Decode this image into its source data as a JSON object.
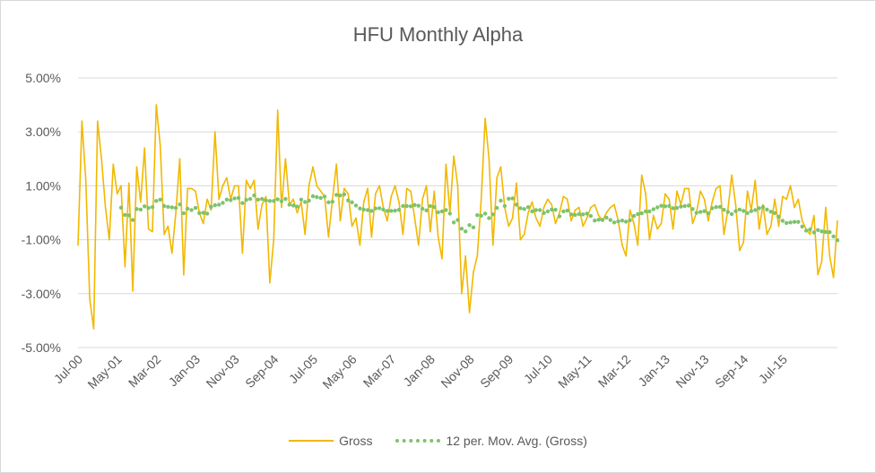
{
  "chart_data": {
    "type": "line",
    "title": "HFU Monthly Alpha",
    "x_start": "2000-07",
    "x_end": "2016-03",
    "x_tick_labels": [
      "Jul-00",
      "May-01",
      "Mar-02",
      "Jan-03",
      "Nov-03",
      "Sep-04",
      "Jul-05",
      "May-06",
      "Mar-07",
      "Jan-08",
      "Nov-08",
      "Sep-09",
      "Jul-10",
      "May-11",
      "Mar-12",
      "Jan-13",
      "Nov-13",
      "Sep-14",
      "Jul-15"
    ],
    "y_tick_labels": [
      "5.00%",
      "3.00%",
      "1.00%",
      "-1.00%",
      "-3.00%",
      "-5.00%"
    ],
    "ylim": [
      -5,
      5
    ],
    "ylabel": "",
    "xlabel": "",
    "grid": true,
    "legend_position": "bottom",
    "series": [
      {
        "name": "Gross",
        "style": "line",
        "color": "#f2b800",
        "values": [
          -1.2,
          3.4,
          1.2,
          -3.2,
          -4.3,
          3.4,
          2.0,
          0.2,
          -1.0,
          1.8,
          0.7,
          1.0,
          -2.0,
          1.1,
          -2.9,
          1.7,
          0.4,
          2.4,
          -0.6,
          -0.7,
          4.0,
          2.5,
          -0.8,
          -0.5,
          -1.5,
          0.0,
          2.0,
          -2.3,
          0.9,
          0.9,
          0.8,
          0.0,
          -0.4,
          0.5,
          0.1,
          3.0,
          0.5,
          1.0,
          1.3,
          0.5,
          1.0,
          1.0,
          -1.5,
          1.2,
          0.9,
          1.2,
          -0.6,
          0.3,
          0.6,
          -2.6,
          -1.0,
          3.8,
          0.2,
          2.0,
          0.3,
          0.5,
          0.0,
          0.4,
          -0.8,
          1.0,
          1.7,
          1.0,
          0.8,
          0.6,
          -0.9,
          0.5,
          1.8,
          -0.3,
          0.9,
          0.7,
          -0.5,
          -0.2,
          -1.2,
          0.4,
          0.9,
          -0.9,
          0.7,
          1.0,
          0.2,
          -0.3,
          0.6,
          1.0,
          0.4,
          -0.8,
          0.9,
          0.8,
          -0.2,
          -1.2,
          0.5,
          1.0,
          -0.7,
          0.8,
          -0.9,
          -1.7,
          1.8,
          0.0,
          2.1,
          1.0,
          -3.0,
          -1.6,
          -3.7,
          -2.2,
          -1.6,
          0.5,
          3.5,
          2.0,
          -1.2,
          1.3,
          1.7,
          0.2,
          -0.5,
          -0.2,
          1.1,
          -1.0,
          -0.8,
          0.0,
          0.4,
          -0.2,
          -0.5,
          0.2,
          0.5,
          0.3,
          -0.4,
          0.0,
          0.6,
          0.5,
          -0.3,
          0.1,
          0.2,
          -0.5,
          -0.2,
          0.2,
          0.3,
          -0.1,
          -0.3,
          0.0,
          0.2,
          0.3,
          -0.3,
          -1.2,
          -1.6,
          0.1,
          -0.4,
          -1.2,
          1.4,
          0.7,
          -1.0,
          -0.1,
          -0.6,
          -0.4,
          0.7,
          0.5,
          -0.6,
          0.8,
          0.3,
          0.9,
          0.9,
          -0.4,
          0.0,
          0.8,
          0.5,
          -0.3,
          0.4,
          0.9,
          1.0,
          -0.8,
          0.1,
          1.4,
          0.3,
          -1.4,
          -1.1,
          0.8,
          0.1,
          1.2,
          -0.6,
          0.3,
          -0.8,
          -0.5,
          0.5,
          -0.5,
          0.6,
          0.5,
          1.0,
          0.2,
          0.5,
          -0.3,
          -0.6,
          -0.8,
          -0.1,
          -2.3,
          -1.8,
          0.2,
          -1.6,
          -2.4,
          -0.3
        ]
      },
      {
        "name": "12 per. Mov. Avg. (Gross)",
        "style": "dotted",
        "color": "#7dc36c",
        "values": [
          null,
          null,
          null,
          null,
          null,
          null,
          null,
          null,
          null,
          null,
          null,
          0.19,
          -0.08,
          -0.1,
          -0.27,
          0.14,
          0.12,
          0.24,
          0.18,
          0.21,
          0.44,
          0.49,
          0.25,
          0.22,
          0.2,
          0.18,
          0.31,
          -0.02,
          0.15,
          0.1,
          0.18,
          -0.01,
          0.0,
          -0.03,
          0.22,
          0.28,
          0.3,
          0.37,
          0.49,
          0.47,
          0.53,
          0.55,
          0.36,
          0.48,
          0.51,
          0.64,
          0.49,
          0.51,
          0.46,
          0.44,
          0.44,
          0.5,
          0.43,
          0.51,
          0.3,
          0.27,
          0.23,
          0.49,
          0.4,
          0.45,
          0.61,
          0.58,
          0.55,
          0.6,
          0.39,
          0.41,
          0.66,
          0.64,
          0.68,
          0.46,
          0.39,
          0.27,
          0.16,
          0.12,
          0.1,
          0.07,
          0.16,
          0.17,
          0.12,
          0.07,
          0.07,
          0.08,
          0.11,
          0.25,
          0.25,
          0.24,
          0.29,
          0.26,
          0.15,
          0.09,
          0.25,
          0.21,
          0.02,
          0.05,
          0.1,
          -0.03,
          -0.36,
          -0.27,
          -0.59,
          -0.69,
          -0.46,
          -0.54,
          -0.09,
          -0.11,
          -0.03,
          -0.2,
          -0.06,
          0.18,
          0.45,
          0.25,
          0.52,
          0.53,
          0.3,
          0.17,
          0.14,
          0.21,
          0.05,
          0.1,
          0.1,
          -0.01,
          0.05,
          0.12,
          0.11,
          -0.13,
          0.05,
          0.08,
          -0.06,
          -0.08,
          -0.05,
          -0.06,
          -0.03,
          -0.12,
          -0.29,
          -0.26,
          -0.27,
          -0.18,
          -0.27,
          -0.36,
          -0.32,
          -0.29,
          -0.33,
          -0.28,
          -0.12,
          -0.05,
          -0.02,
          0.05,
          0.05,
          0.13,
          0.2,
          0.26,
          0.24,
          0.25,
          0.17,
          0.18,
          0.23,
          0.25,
          0.27,
          0.14,
          0.0,
          0.03,
          0.06,
          -0.02,
          0.17,
          0.21,
          0.22,
          0.11,
          0.03,
          -0.05,
          0.06,
          0.12,
          0.07,
          -0.01,
          0.06,
          0.1,
          0.17,
          0.21,
          0.12,
          0.04,
          -0.01,
          -0.15,
          -0.3,
          -0.38,
          -0.36,
          -0.34,
          -0.34,
          -0.51,
          -0.66,
          -0.62,
          -0.73,
          -0.64,
          -0.69,
          -0.71,
          -0.72,
          -0.88,
          -1.02
        ]
      }
    ]
  }
}
